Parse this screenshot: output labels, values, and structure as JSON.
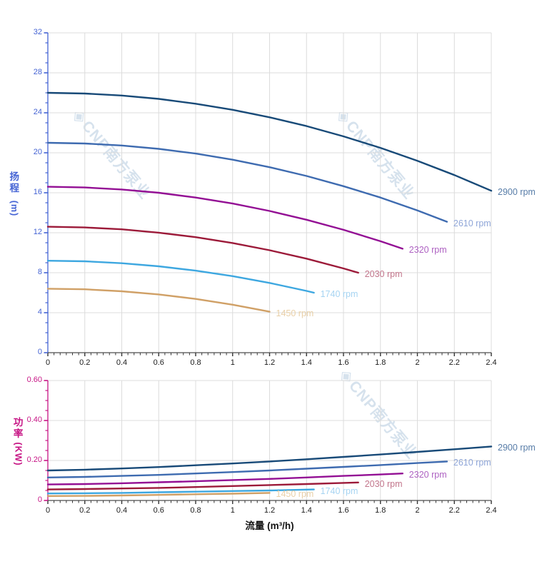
{
  "watermark": {
    "logo": "◈",
    "text": "CNP南方泵业",
    "color": "#b5cbdf"
  },
  "style": {
    "grid_color": "#dcdcdc",
    "x_axis_line_color": "#4d4d4d",
    "x_tick_text_color": "#1c1c1c",
    "background": "#ffffff"
  },
  "chart_data": [
    {
      "type": "line",
      "title": "",
      "xlabel": "",
      "ylabel": "扬程 (m)",
      "y_title_cn": "扬程",
      "y_title_unit": "(m)",
      "axis_color": "#4463d4",
      "xlim": [
        0,
        2.4
      ],
      "ylim": [
        0,
        32
      ],
      "x_ticks": [
        "0",
        "0.2",
        "0.4",
        "0.6",
        "0.8",
        "1",
        "1.2",
        "1.4",
        "1.6",
        "1.8",
        "2",
        "2.2",
        "2.4"
      ],
      "y_ticks": [
        "0",
        "4",
        "8",
        "12",
        "16",
        "20",
        "24",
        "28",
        "32"
      ],
      "x_minor_per_major": 6,
      "y_minor_step": 1,
      "y_major_every": 4,
      "grid": true,
      "legend_position": "right-of-curve-end",
      "series": [
        {
          "name": "2900 rpm",
          "color": "#184a78",
          "label_color": "#587da8",
          "points": [
            [
              0,
              26
            ],
            [
              0.2,
              25.93
            ],
            [
              0.4,
              25.73
            ],
            [
              0.6,
              25.39
            ],
            [
              0.8,
              24.91
            ],
            [
              1,
              24.3
            ],
            [
              1.2,
              23.55
            ],
            [
              1.4,
              22.67
            ],
            [
              1.6,
              21.64
            ],
            [
              1.8,
              20.49
            ],
            [
              2,
              19.19
            ],
            [
              2.2,
              17.77
            ],
            [
              2.4,
              16.2
            ]
          ]
        },
        {
          "name": "2610 rpm",
          "color": "#3e6bb0",
          "label_color": "#8fa6d8",
          "points": [
            [
              0,
              21
            ],
            [
              0.2,
              20.93
            ],
            [
              0.4,
              20.73
            ],
            [
              0.6,
              20.39
            ],
            [
              0.8,
              19.92
            ],
            [
              1,
              19.31
            ],
            [
              1.2,
              18.56
            ],
            [
              1.4,
              17.68
            ],
            [
              1.6,
              16.66
            ],
            [
              1.8,
              15.52
            ],
            [
              2,
              14.23
            ],
            [
              2.16,
              13.1
            ]
          ]
        },
        {
          "name": "2320 rpm",
          "color": "#930f94",
          "label_color": "#ae62c2",
          "points": [
            [
              0,
              16.6
            ],
            [
              0.2,
              16.53
            ],
            [
              0.4,
              16.33
            ],
            [
              0.6,
              16
            ],
            [
              0.8,
              15.52
            ],
            [
              1,
              14.92
            ],
            [
              1.2,
              14.18
            ],
            [
              1.4,
              13.3
            ],
            [
              1.6,
              12.29
            ],
            [
              1.8,
              11.15
            ],
            [
              1.92,
              10.4
            ]
          ]
        },
        {
          "name": "2030 rpm",
          "color": "#9c1a39",
          "label_color": "#c2758b",
          "points": [
            [
              0,
              12.6
            ],
            [
              0.2,
              12.53
            ],
            [
              0.4,
              12.34
            ],
            [
              0.6,
              12.01
            ],
            [
              0.8,
              11.56
            ],
            [
              1,
              10.97
            ],
            [
              1.2,
              10.25
            ],
            [
              1.4,
              9.41
            ],
            [
              1.6,
              8.43
            ],
            [
              1.68,
              8
            ]
          ]
        },
        {
          "name": "1740 rpm",
          "color": "#3da7e0",
          "label_color": "#a6d4f2",
          "points": [
            [
              0,
              9.2
            ],
            [
              0.2,
              9.14
            ],
            [
              0.4,
              8.95
            ],
            [
              0.6,
              8.64
            ],
            [
              0.8,
              8.21
            ],
            [
              1,
              7.66
            ],
            [
              1.2,
              6.98
            ],
            [
              1.4,
              6.18
            ],
            [
              1.44,
              6
            ]
          ]
        },
        {
          "name": "1450 rpm",
          "color": "#d0a066",
          "label_color": "#e9d0a8",
          "points": [
            [
              0,
              6.4
            ],
            [
              0.2,
              6.34
            ],
            [
              0.4,
              6.14
            ],
            [
              0.6,
              5.83
            ],
            [
              0.8,
              5.38
            ],
            [
              1,
              4.8
            ],
            [
              1.2,
              4.1
            ]
          ]
        }
      ]
    },
    {
      "type": "line",
      "title": "",
      "xlabel": "流量 (m³/h)",
      "ylabel": "功率 (KW)",
      "y_title_cn": "功率",
      "y_title_unit": "(KW)",
      "axis_color": "#c71585",
      "xlim": [
        0,
        2.4
      ],
      "ylim": [
        0,
        0.6
      ],
      "x_ticks": [
        "0",
        "0.2",
        "0.4",
        "0.6",
        "0.8",
        "1",
        "1.2",
        "1.4",
        "1.6",
        "1.8",
        "2",
        "2.2",
        "2.4"
      ],
      "y_ticks": [
        "0",
        "0.20",
        "0.40",
        "0.60"
      ],
      "x_minor_per_major": 6,
      "y_minor_step": 0.05,
      "y_major_every": 4,
      "grid": true,
      "legend_position": "right-of-curve-end",
      "series": [
        {
          "name": "2900 rpm",
          "color": "#184a78",
          "label_color": "#587da8",
          "points": [
            [
              0,
              0.15
            ],
            [
              0.2,
              0.154
            ],
            [
              0.4,
              0.16
            ],
            [
              0.6,
              0.167
            ],
            [
              0.8,
              0.176
            ],
            [
              1,
              0.185
            ],
            [
              1.2,
              0.195
            ],
            [
              1.4,
              0.206
            ],
            [
              1.6,
              0.218
            ],
            [
              1.8,
              0.23
            ],
            [
              2,
              0.243
            ],
            [
              2.2,
              0.256
            ],
            [
              2.4,
              0.27
            ]
          ]
        },
        {
          "name": "2610 rpm",
          "color": "#3e6bb0",
          "label_color": "#8fa6d8",
          "points": [
            [
              0,
              0.115
            ],
            [
              0.2,
              0.118
            ],
            [
              0.4,
              0.123
            ],
            [
              0.6,
              0.128
            ],
            [
              0.8,
              0.135
            ],
            [
              1,
              0.142
            ],
            [
              1.2,
              0.15
            ],
            [
              1.4,
              0.159
            ],
            [
              1.6,
              0.168
            ],
            [
              1.8,
              0.177
            ],
            [
              2,
              0.187
            ],
            [
              2.16,
              0.195
            ]
          ]
        },
        {
          "name": "2320 rpm",
          "color": "#930f94",
          "label_color": "#ae62c2",
          "points": [
            [
              0,
              0.08
            ],
            [
              0.2,
              0.082
            ],
            [
              0.4,
              0.086
            ],
            [
              0.6,
              0.091
            ],
            [
              0.8,
              0.096
            ],
            [
              1,
              0.102
            ],
            [
              1.2,
              0.108
            ],
            [
              1.4,
              0.115
            ],
            [
              1.6,
              0.123
            ],
            [
              1.8,
              0.13
            ],
            [
              1.92,
              0.135
            ]
          ]
        },
        {
          "name": "2030 rpm",
          "color": "#9c1a39",
          "label_color": "#c2758b",
          "points": [
            [
              0,
              0.055
            ],
            [
              0.2,
              0.057
            ],
            [
              0.4,
              0.06
            ],
            [
              0.6,
              0.063
            ],
            [
              0.8,
              0.067
            ],
            [
              1,
              0.072
            ],
            [
              1.2,
              0.077
            ],
            [
              1.4,
              0.082
            ],
            [
              1.6,
              0.088
            ],
            [
              1.68,
              0.09
            ]
          ]
        },
        {
          "name": "1740 rpm",
          "color": "#3da7e0",
          "label_color": "#a6d4f2",
          "points": [
            [
              0,
              0.035
            ],
            [
              0.2,
              0.036
            ],
            [
              0.4,
              0.038
            ],
            [
              0.6,
              0.041
            ],
            [
              0.8,
              0.044
            ],
            [
              1,
              0.047
            ],
            [
              1.2,
              0.05
            ],
            [
              1.44,
              0.055
            ]
          ]
        },
        {
          "name": "1450 rpm",
          "color": "#d0a066",
          "label_color": "#e9d0a8",
          "points": [
            [
              0,
              0.022
            ],
            [
              0.2,
              0.023
            ],
            [
              0.4,
              0.025
            ],
            [
              0.6,
              0.028
            ],
            [
              0.8,
              0.031
            ],
            [
              1,
              0.034
            ],
            [
              1.2,
              0.038
            ]
          ]
        }
      ]
    }
  ]
}
